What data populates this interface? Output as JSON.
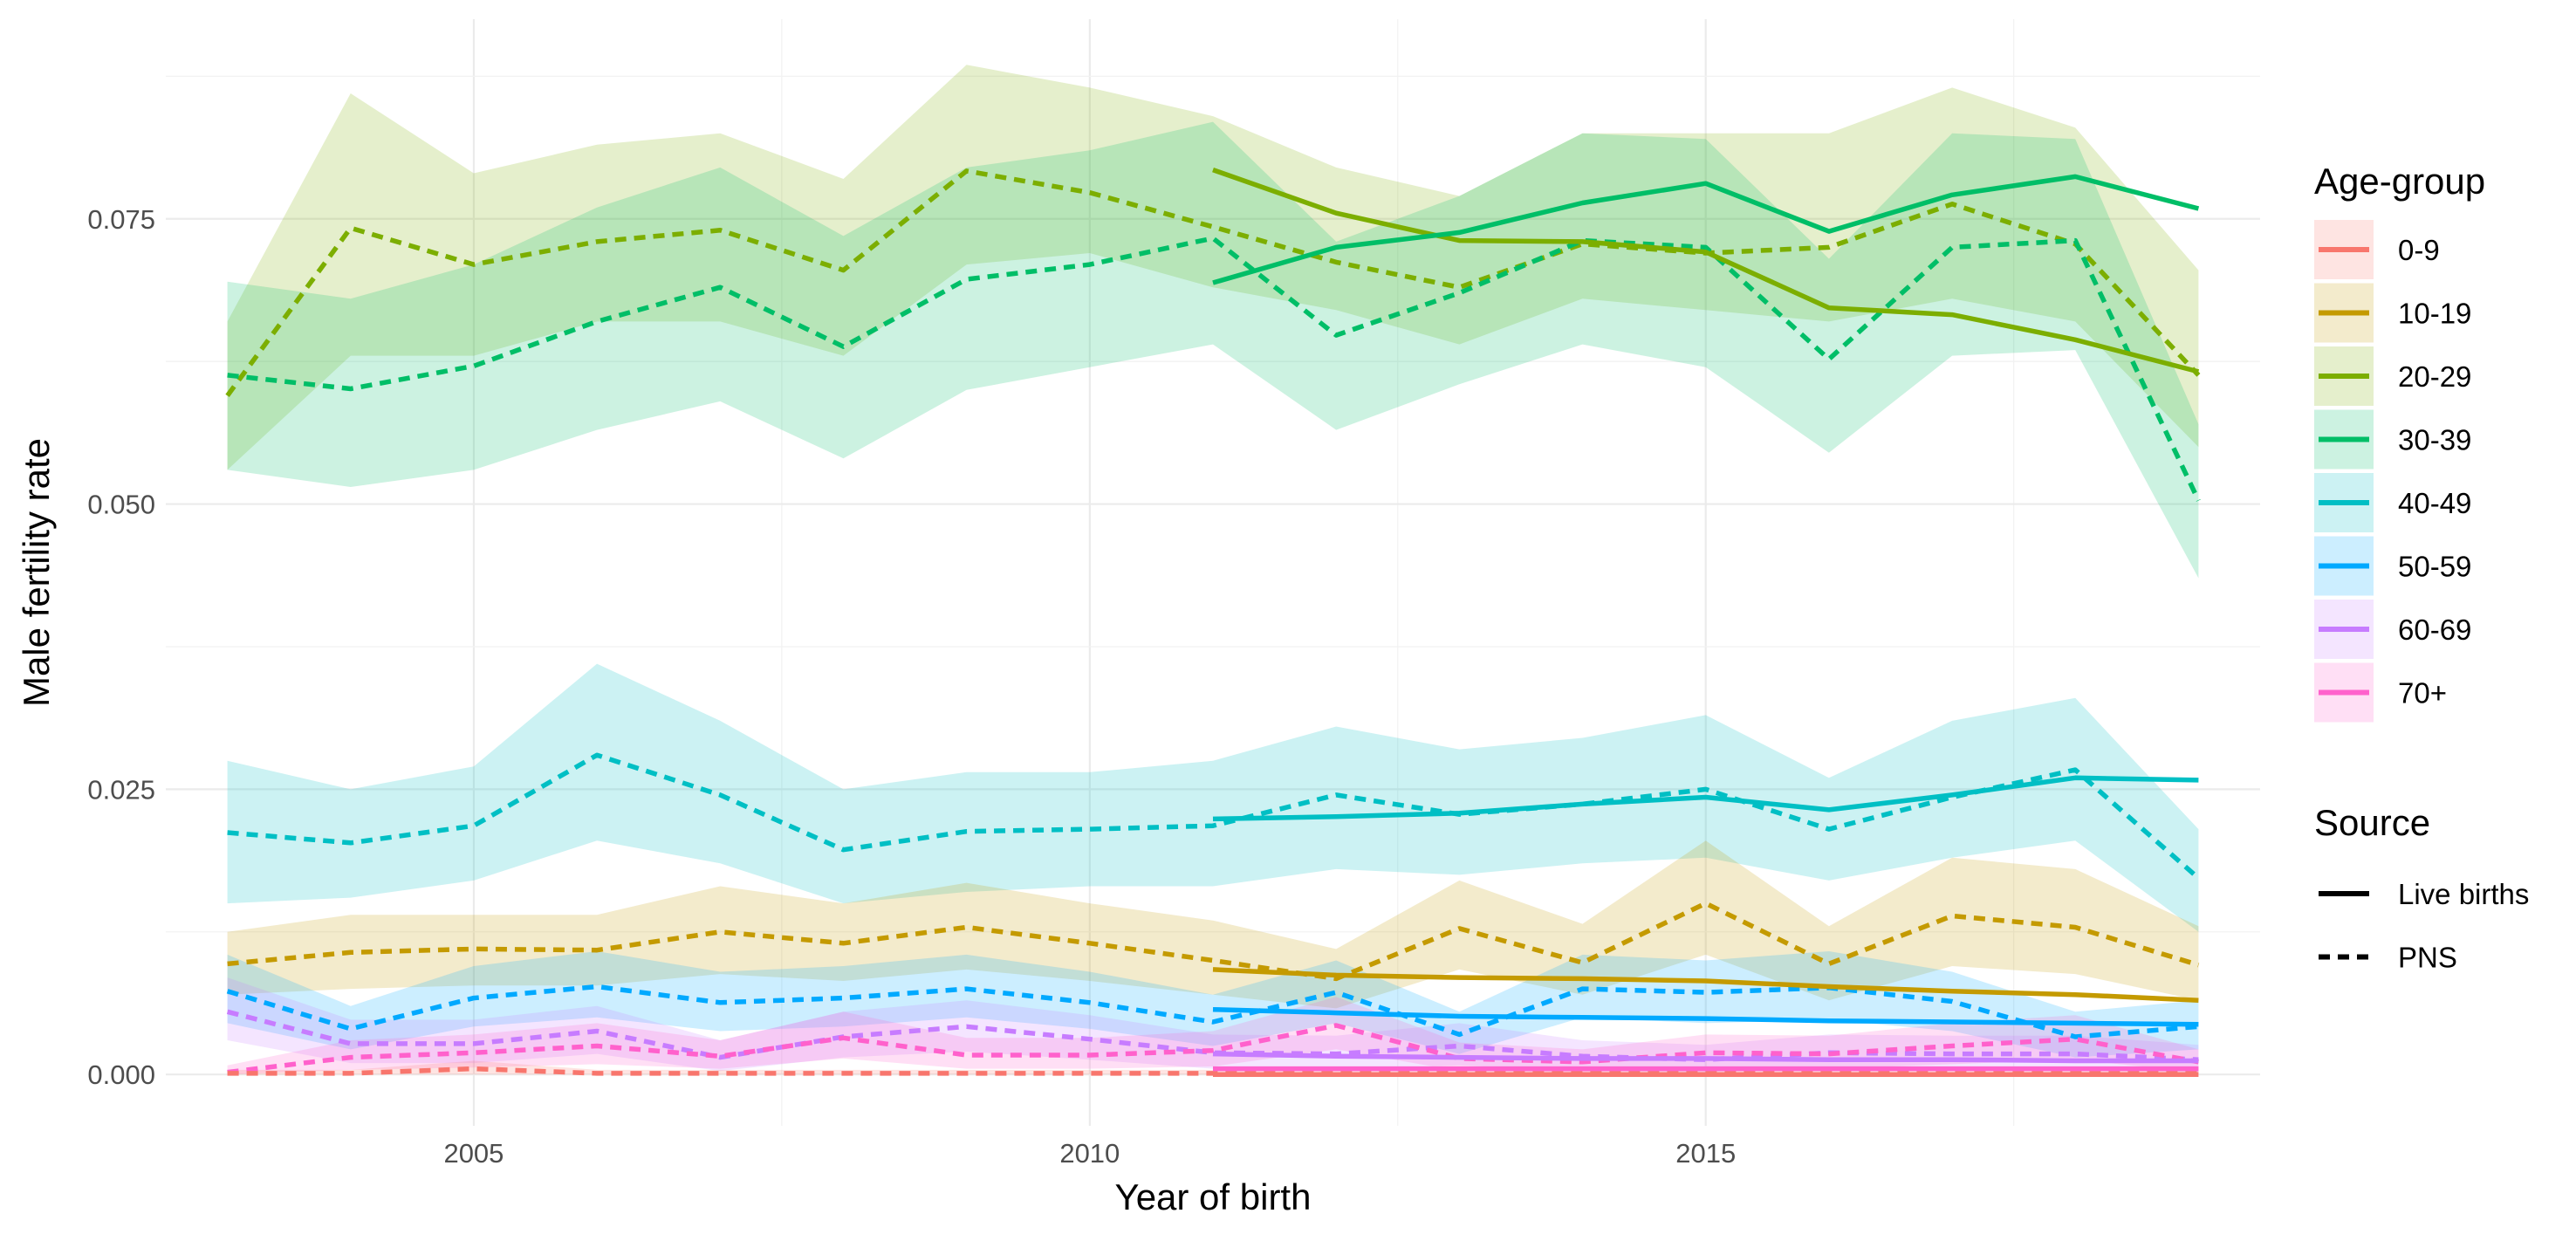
{
  "chart_data": {
    "type": "line",
    "xlabel": "Year of birth",
    "ylabel": "Male fertility rate",
    "xlim": [
      2002.5,
      2019.5
    ],
    "ylim": [
      -0.0045,
      0.0925
    ],
    "x_ticks": [
      2005,
      2010,
      2015
    ],
    "x_tick_labels": [
      "2005",
      "2010",
      "2015"
    ],
    "y_ticks": [
      0.0,
      0.025,
      0.05,
      0.075
    ],
    "y_tick_labels": [
      "0.000",
      "0.025",
      "0.050",
      "0.075"
    ],
    "grid": true,
    "legend_position": "right",
    "legends": {
      "color": {
        "title": "Age-group",
        "entries": [
          {
            "label": "0-9",
            "color": "#F8766D"
          },
          {
            "label": "10-19",
            "color": "#C49A00"
          },
          {
            "label": "20-29",
            "color": "#7CAE00"
          },
          {
            "label": "30-39",
            "color": "#00BE67"
          },
          {
            "label": "40-49",
            "color": "#00BFC4"
          },
          {
            "label": "50-59",
            "color": "#00A9FF"
          },
          {
            "label": "60-69",
            "color": "#C77CFF"
          },
          {
            "label": "70+",
            "color": "#FF61CC"
          }
        ]
      },
      "linetype": {
        "title": "Source",
        "entries": [
          {
            "label": "Live births",
            "style": "solid"
          },
          {
            "label": "PNS",
            "style": "dashed"
          }
        ]
      }
    },
    "series": [
      {
        "group": "20-29",
        "source": "PNS",
        "color": "#7CAE00",
        "x": [
          2003,
          2004,
          2005,
          2006,
          2007,
          2008,
          2009,
          2010,
          2011,
          2012,
          2013,
          2014,
          2015,
          2016,
          2017,
          2018,
          2019
        ],
        "y": [
          0.0595,
          0.0742,
          0.071,
          0.073,
          0.074,
          0.0705,
          0.0792,
          0.0773,
          0.0743,
          0.0712,
          0.069,
          0.0728,
          0.072,
          0.0725,
          0.0763,
          0.0728,
          0.0613
        ],
        "lower": [
          0.053,
          0.063,
          0.063,
          0.066,
          0.066,
          0.063,
          0.071,
          0.072,
          0.069,
          0.067,
          0.064,
          0.068,
          0.067,
          0.066,
          0.068,
          0.066,
          0.055
        ],
        "upper": [
          0.066,
          0.086,
          0.079,
          0.0815,
          0.0825,
          0.0785,
          0.0885,
          0.0865,
          0.084,
          0.0795,
          0.077,
          0.0825,
          0.0825,
          0.0825,
          0.0865,
          0.083,
          0.0705
        ]
      },
      {
        "group": "30-39",
        "source": "PNS",
        "color": "#00BE67",
        "x": [
          2003,
          2004,
          2005,
          2006,
          2007,
          2008,
          2009,
          2010,
          2011,
          2012,
          2013,
          2014,
          2015,
          2016,
          2017,
          2018,
          2019
        ],
        "y": [
          0.0613,
          0.0601,
          0.0621,
          0.066,
          0.069,
          0.0638,
          0.0697,
          0.071,
          0.0733,
          0.0648,
          0.0685,
          0.0731,
          0.0725,
          0.0627,
          0.0725,
          0.0731,
          0.0503
        ],
        "lower": [
          0.053,
          0.0515,
          0.053,
          0.0565,
          0.059,
          0.054,
          0.06,
          0.062,
          0.064,
          0.0565,
          0.0605,
          0.064,
          0.062,
          0.0545,
          0.063,
          0.0635,
          0.0435
        ],
        "upper": [
          0.0695,
          0.068,
          0.071,
          0.076,
          0.0795,
          0.0735,
          0.0795,
          0.081,
          0.0835,
          0.073,
          0.077,
          0.0825,
          0.082,
          0.0715,
          0.0825,
          0.082,
          0.057
        ]
      },
      {
        "group": "40-49",
        "source": "PNS",
        "color": "#00BFC4",
        "x": [
          2003,
          2004,
          2005,
          2006,
          2007,
          2008,
          2009,
          2010,
          2011,
          2012,
          2013,
          2014,
          2015,
          2016,
          2017,
          2018,
          2019
        ],
        "y": [
          0.0212,
          0.0203,
          0.0218,
          0.028,
          0.0245,
          0.0197,
          0.0213,
          0.0215,
          0.0218,
          0.0245,
          0.0228,
          0.0237,
          0.025,
          0.0215,
          0.0243,
          0.0267,
          0.0172
        ],
        "lower": [
          0.015,
          0.0155,
          0.017,
          0.0205,
          0.0185,
          0.015,
          0.016,
          0.0165,
          0.0165,
          0.018,
          0.0175,
          0.0185,
          0.019,
          0.017,
          0.019,
          0.0205,
          0.0125
        ],
        "upper": [
          0.0275,
          0.025,
          0.027,
          0.036,
          0.031,
          0.025,
          0.0265,
          0.0265,
          0.0275,
          0.0305,
          0.0285,
          0.0295,
          0.0315,
          0.026,
          0.031,
          0.033,
          0.0215
        ]
      },
      {
        "group": "10-19",
        "source": "PNS",
        "color": "#C49A00",
        "x": [
          2003,
          2004,
          2005,
          2006,
          2007,
          2008,
          2009,
          2010,
          2011,
          2012,
          2013,
          2014,
          2015,
          2016,
          2017,
          2018,
          2019
        ],
        "y": [
          0.0097,
          0.0107,
          0.011,
          0.0109,
          0.0125,
          0.0115,
          0.0129,
          0.0115,
          0.01,
          0.0084,
          0.0128,
          0.0098,
          0.015,
          0.0097,
          0.0139,
          0.0129,
          0.0096
        ],
        "lower": [
          0.007,
          0.0075,
          0.0078,
          0.0078,
          0.0088,
          0.0082,
          0.0092,
          0.0082,
          0.007,
          0.0058,
          0.0092,
          0.007,
          0.0105,
          0.0065,
          0.0095,
          0.0088,
          0.0065
        ],
        "upper": [
          0.0125,
          0.014,
          0.014,
          0.014,
          0.0165,
          0.015,
          0.0168,
          0.015,
          0.0135,
          0.011,
          0.017,
          0.0132,
          0.0205,
          0.013,
          0.019,
          0.018,
          0.013
        ]
      },
      {
        "group": "50-59",
        "source": "PNS",
        "color": "#00A9FF",
        "x": [
          2003,
          2004,
          2005,
          2006,
          2007,
          2008,
          2009,
          2010,
          2011,
          2012,
          2013,
          2014,
          2015,
          2016,
          2017,
          2018,
          2019
        ],
        "y": [
          0.0073,
          0.004,
          0.0067,
          0.0077,
          0.0063,
          0.0067,
          0.0075,
          0.0063,
          0.0046,
          0.0072,
          0.0035,
          0.0075,
          0.0072,
          0.0076,
          0.0064,
          0.0033,
          0.0042
        ],
        "lower": [
          0.0045,
          0.0022,
          0.0042,
          0.005,
          0.0038,
          0.0042,
          0.005,
          0.004,
          0.0025,
          0.0045,
          0.0018,
          0.005,
          0.0045,
          0.0048,
          0.0038,
          0.0015,
          0.0022
        ],
        "upper": [
          0.0105,
          0.006,
          0.0095,
          0.0108,
          0.009,
          0.0095,
          0.0105,
          0.009,
          0.007,
          0.01,
          0.0055,
          0.0105,
          0.01,
          0.0108,
          0.009,
          0.0055,
          0.0065
        ]
      },
      {
        "group": "60-69",
        "source": "PNS",
        "color": "#C77CFF",
        "x": [
          2003,
          2004,
          2005,
          2006,
          2007,
          2008,
          2009,
          2010,
          2011,
          2012,
          2013,
          2014,
          2015,
          2016,
          2017,
          2018,
          2019
        ],
        "y": [
          0.0055,
          0.0027,
          0.0027,
          0.0038,
          0.0015,
          0.0033,
          0.0042,
          0.0031,
          0.0019,
          0.0018,
          0.0025,
          0.0016,
          0.0013,
          0.0019,
          0.0018,
          0.0018,
          0.0013
        ],
        "lower": [
          0.003,
          0.001,
          0.001,
          0.0018,
          0.0003,
          0.0015,
          0.002,
          0.0013,
          0.0005,
          0.0004,
          0.0008,
          0.0003,
          0.0002,
          0.0005,
          0.0004,
          0.0004,
          0.0002
        ],
        "upper": [
          0.0085,
          0.0048,
          0.0048,
          0.006,
          0.003,
          0.0055,
          0.0065,
          0.0052,
          0.0035,
          0.0034,
          0.0045,
          0.003,
          0.0026,
          0.0035,
          0.0034,
          0.0034,
          0.0026
        ]
      },
      {
        "group": "70+",
        "source": "PNS",
        "color": "#FF61CC",
        "x": [
          2003,
          2004,
          2005,
          2006,
          2007,
          2008,
          2009,
          2010,
          2011,
          2012,
          2013,
          2014,
          2015,
          2016,
          2017,
          2018,
          2019
        ],
        "y": [
          0.0002,
          0.0015,
          0.0019,
          0.0025,
          0.0016,
          0.0032,
          0.0017,
          0.0017,
          0.0021,
          0.0043,
          0.0014,
          0.0011,
          0.0019,
          0.0018,
          0.0025,
          0.0031,
          0.0011
        ],
        "lower": [
          0.0,
          0.0004,
          0.0006,
          0.0009,
          0.0005,
          0.0014,
          0.0005,
          0.0005,
          0.0007,
          0.0022,
          0.0003,
          0.0002,
          0.0006,
          0.0005,
          0.0009,
          0.0013,
          0.0002
        ],
        "upper": [
          0.0008,
          0.003,
          0.0035,
          0.0045,
          0.003,
          0.0055,
          0.0032,
          0.0032,
          0.0038,
          0.0068,
          0.0028,
          0.0022,
          0.0035,
          0.0034,
          0.0045,
          0.0052,
          0.0022
        ]
      },
      {
        "group": "0-9",
        "source": "PNS",
        "color": "#F8766D",
        "x": [
          2003,
          2004,
          2005,
          2006,
          2007,
          2008,
          2009,
          2010,
          2011,
          2012,
          2013,
          2014,
          2015,
          2016,
          2017,
          2018,
          2019
        ],
        "y": [
          0.0001,
          0.0001,
          0.0005,
          0.0001,
          0.0001,
          0.0001,
          0.0001,
          0.0001,
          0.0001,
          0.0001,
          0.0001,
          0.0001,
          0.0001,
          0.0001,
          0.0001,
          0.0001,
          0.0001
        ],
        "lower": [
          0.0,
          0.0,
          0.0,
          0.0,
          0.0,
          0.0,
          0.0,
          0.0,
          0.0,
          0.0,
          0.0,
          0.0,
          0.0,
          0.0,
          0.0,
          0.0,
          0.0
        ],
        "upper": [
          0.0004,
          0.0004,
          0.0012,
          0.0004,
          0.0004,
          0.0004,
          0.0004,
          0.0004,
          0.0004,
          0.0004,
          0.0004,
          0.0004,
          0.0004,
          0.0004,
          0.0004,
          0.0004,
          0.0004
        ]
      },
      {
        "group": "20-29",
        "source": "Live births",
        "color": "#7CAE00",
        "x": [
          2011,
          2012,
          2013,
          2014,
          2015,
          2016,
          2017,
          2018,
          2019
        ],
        "y": [
          0.0793,
          0.0755,
          0.0731,
          0.073,
          0.0721,
          0.0672,
          0.0666,
          0.0644,
          0.0616
        ]
      },
      {
        "group": "30-39",
        "source": "Live births",
        "color": "#00BE67",
        "x": [
          2011,
          2012,
          2013,
          2014,
          2015,
          2016,
          2017,
          2018,
          2019
        ],
        "y": [
          0.0694,
          0.0725,
          0.0738,
          0.0764,
          0.0781,
          0.0739,
          0.0771,
          0.0787,
          0.0759
        ]
      },
      {
        "group": "40-49",
        "source": "Live births",
        "color": "#00BFC4",
        "x": [
          2011,
          2012,
          2013,
          2014,
          2015,
          2016,
          2017,
          2018,
          2019
        ],
        "y": [
          0.0224,
          0.0226,
          0.0229,
          0.0237,
          0.0243,
          0.0232,
          0.0245,
          0.026,
          0.0258
        ]
      },
      {
        "group": "10-19",
        "source": "Live births",
        "color": "#C49A00",
        "x": [
          2011,
          2012,
          2013,
          2014,
          2015,
          2016,
          2017,
          2018,
          2019
        ],
        "y": [
          0.0092,
          0.0087,
          0.0085,
          0.0084,
          0.0082,
          0.0077,
          0.0073,
          0.007,
          0.0065
        ]
      },
      {
        "group": "50-59",
        "source": "Live births",
        "color": "#00A9FF",
        "x": [
          2011,
          2012,
          2013,
          2014,
          2015,
          2016,
          2017,
          2018,
          2019
        ],
        "y": [
          0.0057,
          0.0054,
          0.0051,
          0.005,
          0.0049,
          0.0047,
          0.0046,
          0.0045,
          0.0044
        ]
      },
      {
        "group": "60-69",
        "source": "Live births",
        "color": "#C77CFF",
        "x": [
          2011,
          2012,
          2013,
          2014,
          2015,
          2016,
          2017,
          2018,
          2019
        ],
        "y": [
          0.0018,
          0.0016,
          0.0015,
          0.0014,
          0.0014,
          0.0013,
          0.0013,
          0.0012,
          0.0012
        ]
      },
      {
        "group": "70+",
        "source": "Live births",
        "color": "#FF61CC",
        "x": [
          2011,
          2012,
          2013,
          2014,
          2015,
          2016,
          2017,
          2018,
          2019
        ],
        "y": [
          0.0005,
          0.0005,
          0.0005,
          0.0005,
          0.0005,
          0.0005,
          0.0005,
          0.0005,
          0.0005
        ]
      },
      {
        "group": "0-9",
        "source": "Live births",
        "color": "#F8766D",
        "x": [
          2011,
          2012,
          2013,
          2014,
          2015,
          2016,
          2017,
          2018,
          2019
        ],
        "y": [
          0.0,
          0.0,
          0.0,
          0.0,
          0.0,
          0.0,
          0.0,
          0.0,
          0.0
        ]
      }
    ]
  }
}
